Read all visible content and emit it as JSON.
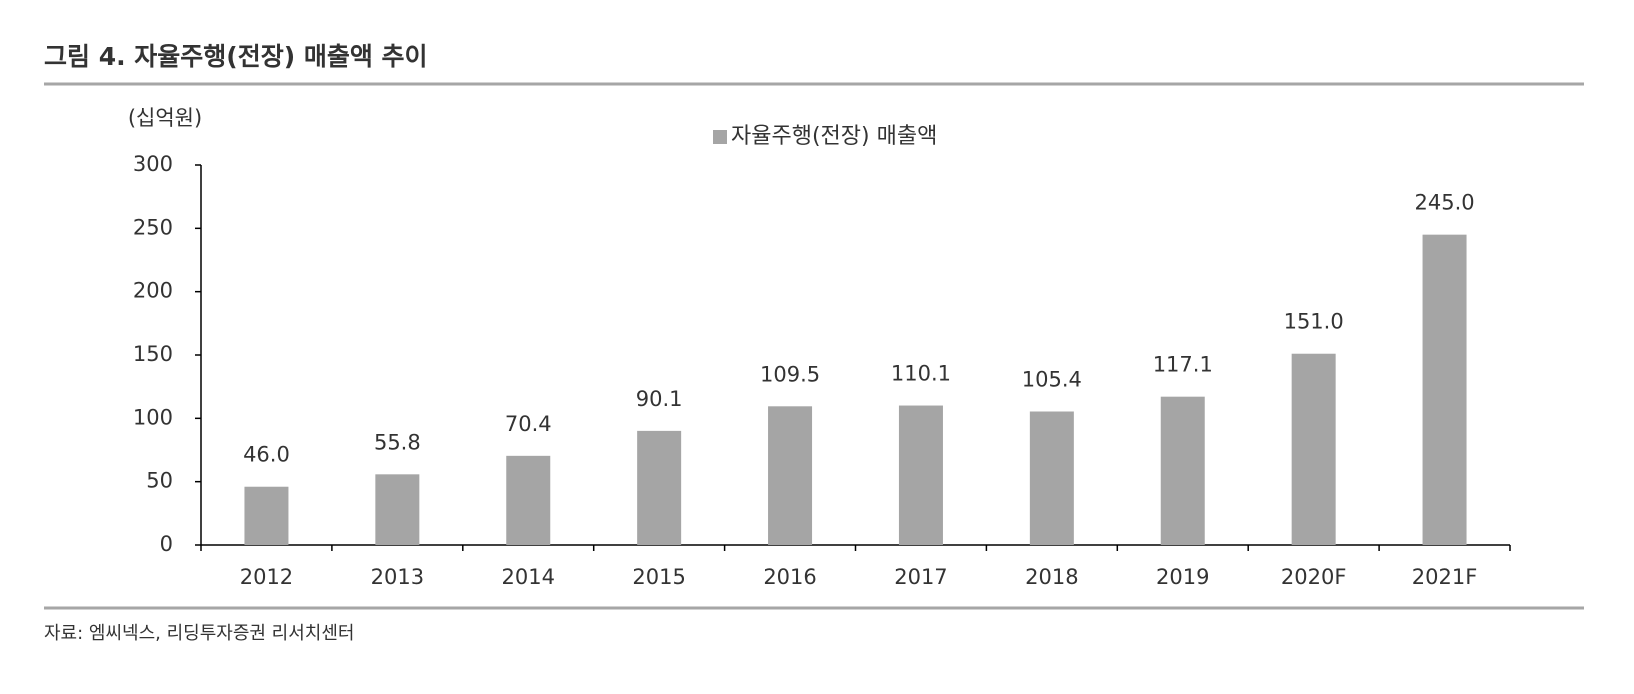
{
  "chart_data": {
    "type": "bar",
    "title": "그림 4. 자율주행(전장) 매출액 추이",
    "y_axis_label": "(십억원)",
    "source": "자료: 엠씨넥스, 리딩투자증권 리서치센터",
    "categories": [
      "2012",
      "2013",
      "2014",
      "2015",
      "2016",
      "2017",
      "2018",
      "2019",
      "2020F",
      "2021F"
    ],
    "series": [
      {
        "name": "자율주행(전장) 매출액",
        "color": "#a5a5a5",
        "values": [
          46.0,
          55.8,
          70.4,
          90.1,
          109.5,
          110.1,
          105.4,
          117.1,
          151.0,
          245.0
        ],
        "value_labels": [
          "46.0",
          "55.8",
          "70.4",
          "90.1",
          "109.5",
          "110.1",
          "105.4",
          "117.1",
          "151.0",
          "245.0"
        ]
      }
    ],
    "ylim": [
      0,
      300
    ],
    "yticks": [
      0,
      50,
      100,
      150,
      200,
      250,
      300
    ],
    "legend": "top"
  }
}
